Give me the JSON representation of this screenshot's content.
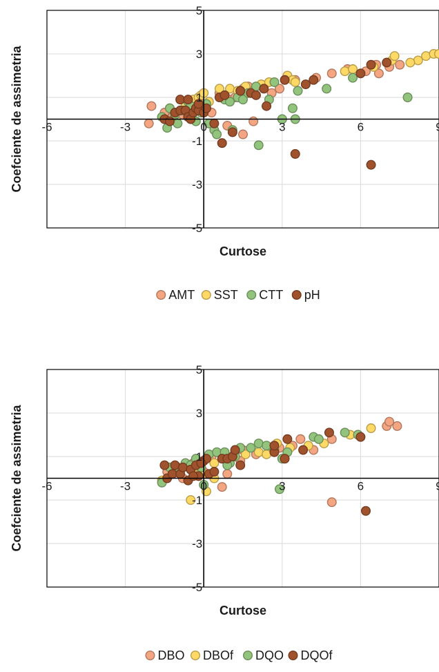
{
  "chart_data": [
    {
      "type": "scatter",
      "xlabel": "Curtose",
      "ylabel": "Coefciente de assimetria",
      "xlim": [
        -6,
        9
      ],
      "ylim": [
        -5,
        5
      ],
      "x_ticks": [
        "-6",
        "-3",
        "0",
        "3",
        "6",
        "9"
      ],
      "y_ticks": [
        "5",
        "3",
        "1",
        "-1",
        "-3",
        "-5"
      ],
      "grid": true,
      "legend_position": "bottom",
      "series": [
        {
          "name": "AMT",
          "color": "#F4A582",
          "points": [
            [
              -2,
              0.6
            ],
            [
              -2.1,
              -0.2
            ],
            [
              -1.5,
              0.3
            ],
            [
              -1.2,
              0.1
            ],
            [
              -0.8,
              0.2
            ],
            [
              -0.5,
              0.5
            ],
            [
              -0.3,
              0.9
            ],
            [
              -0.1,
              0.7
            ],
            [
              0.1,
              0.4
            ],
            [
              0.3,
              0.3
            ],
            [
              0.6,
              1.2
            ],
            [
              0.8,
              1.1
            ],
            [
              1.0,
              0.9
            ],
            [
              1.2,
              1.0
            ],
            [
              1.5,
              1.4
            ],
            [
              1.7,
              1.5
            ],
            [
              1.9,
              1.3
            ],
            [
              2.3,
              1.5
            ],
            [
              2.6,
              1.2
            ],
            [
              2.9,
              1.4
            ],
            [
              3.5,
              1.8
            ],
            [
              4.3,
              1.9
            ],
            [
              4.9,
              2.1
            ],
            [
              5.5,
              2.3
            ],
            [
              6.2,
              2.2
            ],
            [
              6.6,
              2.5
            ],
            [
              6.7,
              2.1
            ],
            [
              7.1,
              2.4
            ],
            [
              7.5,
              2.5
            ],
            [
              1.5,
              -0.7
            ],
            [
              1.9,
              -0.1
            ],
            [
              0.9,
              -0.3
            ]
          ]
        },
        {
          "name": "SST",
          "color": "#FFD966",
          "points": [
            [
              -1.3,
              0.5
            ],
            [
              -0.7,
              0.6
            ],
            [
              -0.4,
              0.9
            ],
            [
              -0.2,
              1.0
            ],
            [
              -0.1,
              1.1
            ],
            [
              0,
              1.2
            ],
            [
              0.2,
              0.8
            ],
            [
              0.6,
              1.4
            ],
            [
              1.0,
              1.4
            ],
            [
              1.3,
              1.3
            ],
            [
              1.6,
              1.5
            ],
            [
              1.8,
              1.2
            ],
            [
              2.2,
              1.6
            ],
            [
              2.5,
              1.7
            ],
            [
              3.2,
              2.0
            ],
            [
              3.4,
              1.8
            ],
            [
              3.5,
              1.7
            ],
            [
              5.4,
              2.2
            ],
            [
              5.7,
              2.3
            ],
            [
              6.5,
              2.4
            ],
            [
              7.0,
              2.6
            ],
            [
              7.2,
              2.7
            ],
            [
              7.3,
              2.9
            ],
            [
              8.2,
              2.7
            ],
            [
              8.5,
              2.9
            ],
            [
              8.8,
              3.0
            ],
            [
              9.0,
              3.0
            ],
            [
              7.9,
              2.6
            ]
          ]
        },
        {
          "name": "CTT",
          "color": "#93C47D",
          "points": [
            [
              -1.4,
              -0.4
            ],
            [
              -1.3,
              0.5
            ],
            [
              -1.1,
              0.2
            ],
            [
              -1.0,
              -0.2
            ],
            [
              -0.8,
              0.4
            ],
            [
              -0.6,
              0.8
            ],
            [
              -0.5,
              0.6
            ],
            [
              -0.3,
              -0.1
            ],
            [
              -0.1,
              0.3
            ],
            [
              0.1,
              0.7
            ],
            [
              0.2,
              -0.2
            ],
            [
              0.4,
              -0.5
            ],
            [
              0.5,
              -0.7
            ],
            [
              0.8,
              0.9
            ],
            [
              1.0,
              0.8
            ],
            [
              1.1,
              -0.5
            ],
            [
              1.3,
              1.0
            ],
            [
              1.5,
              0.9
            ],
            [
              1.7,
              1.2
            ],
            [
              2.0,
              1.5
            ],
            [
              2.1,
              -1.2
            ],
            [
              2.5,
              0.9
            ],
            [
              2.7,
              1.7
            ],
            [
              3.4,
              0.5
            ],
            [
              3.5,
              0.0
            ],
            [
              3.6,
              1.3
            ],
            [
              4.7,
              1.4
            ],
            [
              5.7,
              1.9
            ],
            [
              7.8,
              1.0
            ],
            [
              3.0,
              0.0
            ],
            [
              -1.6,
              0.1
            ]
          ]
        },
        {
          "name": "pH",
          "color": "#A0522D",
          "points": [
            [
              -1.5,
              0.0
            ],
            [
              -1.3,
              -0.1
            ],
            [
              -1.1,
              0.3
            ],
            [
              -0.9,
              0.4
            ],
            [
              -0.7,
              0.4
            ],
            [
              -0.6,
              0.1
            ],
            [
              -0.5,
              0.0
            ],
            [
              -0.4,
              0.3
            ],
            [
              -0.3,
              0.5
            ],
            [
              -0.2,
              0.4
            ],
            [
              0,
              0.3
            ],
            [
              0.1,
              0.5
            ],
            [
              0.4,
              -0.2
            ],
            [
              0.6,
              1.0
            ],
            [
              0.8,
              1.1
            ],
            [
              0.7,
              -1.1
            ],
            [
              1.1,
              -0.6
            ],
            [
              1.4,
              1.3
            ],
            [
              1.8,
              1.2
            ],
            [
              2.0,
              1.1
            ],
            [
              2.3,
              1.4
            ],
            [
              2.4,
              0.6
            ],
            [
              3.1,
              1.8
            ],
            [
              3.5,
              -1.6
            ],
            [
              3.9,
              1.6
            ],
            [
              4.2,
              1.8
            ],
            [
              6.0,
              2.1
            ],
            [
              6.4,
              2.5
            ],
            [
              7.0,
              2.6
            ],
            [
              6.4,
              -2.1
            ],
            [
              -0.9,
              0.9
            ],
            [
              -0.6,
              0.9
            ],
            [
              -0.2,
              0.7
            ]
          ]
        }
      ]
    },
    {
      "type": "scatter",
      "xlabel": "Curtose",
      "ylabel": "Coefciente de assimetria",
      "xlim": [
        -6,
        9
      ],
      "ylim": [
        -5,
        5
      ],
      "x_ticks": [
        "-6",
        "-3",
        "0",
        "3",
        "6",
        "9"
      ],
      "y_ticks": [
        "5",
        "3",
        "1",
        "-1",
        "-3",
        "-5"
      ],
      "grid": true,
      "legend_position": "bottom",
      "series": [
        {
          "name": "DBO",
          "color": "#F4A582",
          "points": [
            [
              -1.4,
              0.3
            ],
            [
              -1.0,
              0.5
            ],
            [
              -0.8,
              0.0
            ],
            [
              -0.4,
              0.7
            ],
            [
              -0.2,
              0.5
            ],
            [
              0,
              0.3
            ],
            [
              0.3,
              1.0
            ],
            [
              0.7,
              -0.4
            ],
            [
              0.9,
              0.2
            ],
            [
              1.2,
              1.2
            ],
            [
              1.5,
              1.3
            ],
            [
              2.0,
              1.1
            ],
            [
              2.5,
              1.3
            ],
            [
              2.9,
              1.4
            ],
            [
              3.4,
              1.5
            ],
            [
              3.7,
              1.8
            ],
            [
              4.2,
              1.3
            ],
            [
              4.9,
              1.8
            ],
            [
              5.9,
              2.0
            ],
            [
              7.0,
              2.4
            ],
            [
              7.1,
              2.6
            ],
            [
              7.4,
              2.4
            ],
            [
              4.9,
              -1.1
            ],
            [
              1.4,
              0.8
            ]
          ]
        },
        {
          "name": "DBOf",
          "color": "#FFD966",
          "points": [
            [
              -1.6,
              -0.1
            ],
            [
              -1.2,
              0.4
            ],
            [
              -0.5,
              -1.0
            ],
            [
              -0.3,
              0.5
            ],
            [
              -0.1,
              0.3
            ],
            [
              0,
              0.2
            ],
            [
              0.1,
              -0.6
            ],
            [
              0.4,
              0.7
            ],
            [
              0.8,
              1.1
            ],
            [
              1.2,
              1.3
            ],
            [
              1.6,
              1.1
            ],
            [
              2.1,
              1.2
            ],
            [
              2.4,
              1.1
            ],
            [
              2.8,
              1.6
            ],
            [
              3.3,
              1.4
            ],
            [
              4.0,
              1.5
            ],
            [
              4.6,
              1.6
            ],
            [
              5.6,
              2.0
            ],
            [
              6.4,
              2.3
            ],
            [
              0.4,
              0.0
            ]
          ]
        },
        {
          "name": "DQO",
          "color": "#93C47D",
          "points": [
            [
              -1.6,
              -0.2
            ],
            [
              -1.3,
              0.5
            ],
            [
              -1.0,
              0.3
            ],
            [
              -0.7,
              0.7
            ],
            [
              -0.5,
              0.6
            ],
            [
              -0.3,
              0.9
            ],
            [
              -0.1,
              0.5
            ],
            [
              0,
              -0.3
            ],
            [
              0.2,
              1.1
            ],
            [
              0.5,
              1.2
            ],
            [
              0.8,
              1.2
            ],
            [
              1.0,
              0.7
            ],
            [
              1.2,
              1.0
            ],
            [
              1.4,
              1.4
            ],
            [
              1.8,
              1.4
            ],
            [
              2.1,
              1.6
            ],
            [
              2.4,
              1.5
            ],
            [
              2.7,
              1.3
            ],
            [
              2.9,
              -0.5
            ],
            [
              3.0,
              0.9
            ],
            [
              3.2,
              1.2
            ],
            [
              4.2,
              1.9
            ],
            [
              4.4,
              1.8
            ],
            [
              5.4,
              2.1
            ],
            [
              5.9,
              2.0
            ],
            [
              0.9,
              0.6
            ]
          ]
        },
        {
          "name": "DQOf",
          "color": "#A0522D",
          "points": [
            [
              -1.5,
              0.6
            ],
            [
              -1.4,
              0.0
            ],
            [
              -1.2,
              0.2
            ],
            [
              -1.1,
              0.6
            ],
            [
              -0.9,
              0.2
            ],
            [
              -0.8,
              0.5
            ],
            [
              -0.6,
              -0.1
            ],
            [
              -0.5,
              0.4
            ],
            [
              -0.3,
              0.6
            ],
            [
              -0.2,
              0.1
            ],
            [
              0,
              0.8
            ],
            [
              0.1,
              0.9
            ],
            [
              0.2,
              0.2
            ],
            [
              0.4,
              0.3
            ],
            [
              0.7,
              0.9
            ],
            [
              0.9,
              0.9
            ],
            [
              1.1,
              1.0
            ],
            [
              1.2,
              1.3
            ],
            [
              1.4,
              0.6
            ],
            [
              2.7,
              1.2
            ],
            [
              2.7,
              1.5
            ],
            [
              3.1,
              0.9
            ],
            [
              3.2,
              1.8
            ],
            [
              3.8,
              1.3
            ],
            [
              4.8,
              2.1
            ],
            [
              6.0,
              1.9
            ],
            [
              6.2,
              -1.5
            ],
            [
              -0.1,
              0.7
            ],
            [
              -0.4,
              0.1
            ]
          ]
        }
      ]
    }
  ]
}
